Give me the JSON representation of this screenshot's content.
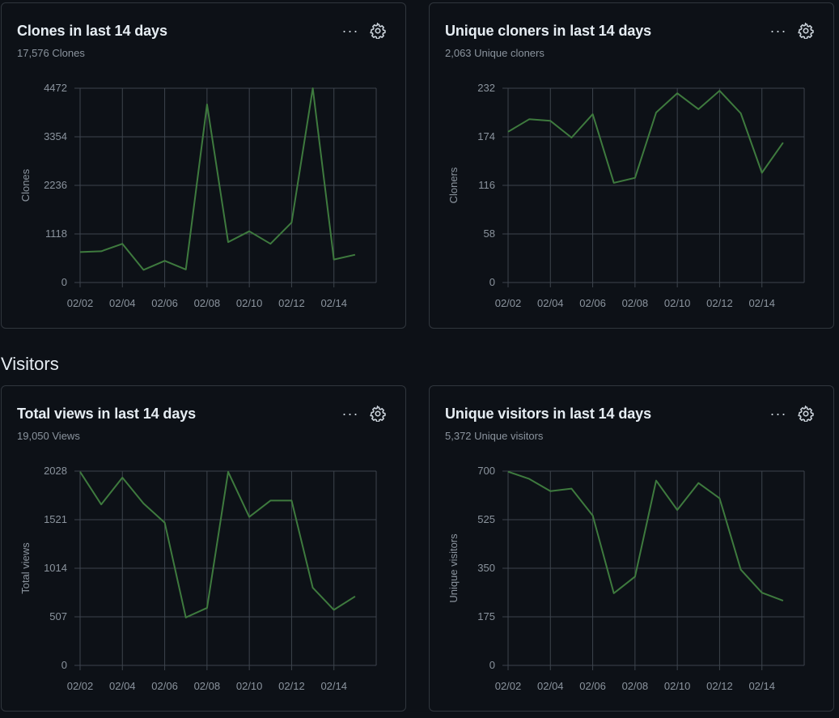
{
  "section_visitors": "Visitors",
  "colors": {
    "line": "#3e7a3e",
    "grid": "#3d444d",
    "axis_text": "#8b949e"
  },
  "icons": {
    "more": "kebab-horizontal-icon",
    "settings": "gear-icon"
  },
  "more_glyph": "···",
  "cards": [
    {
      "title": "Clones in last 14 days",
      "subtitle": "17,576 Clones"
    },
    {
      "title": "Unique cloners in last 14 days",
      "subtitle": "2,063 Unique cloners"
    },
    {
      "title": "Total views in last 14 days",
      "subtitle": "19,050 Views"
    },
    {
      "title": "Unique visitors in last 14 days",
      "subtitle": "5,372 Unique visitors"
    }
  ],
  "chart_data": [
    {
      "type": "line",
      "title": "Clones in last 14 days",
      "ylabel": "Clones",
      "ylim": [
        0,
        4472
      ],
      "yticks": [
        "0",
        "1118",
        "2236",
        "3354",
        "4472"
      ],
      "xticks": [
        "02/02",
        "02/04",
        "02/06",
        "02/08",
        "02/10",
        "02/12",
        "02/14"
      ],
      "x": [
        "02/02",
        "02/03",
        "02/04",
        "02/05",
        "02/06",
        "02/07",
        "02/08",
        "02/09",
        "02/10",
        "02/11",
        "02/12",
        "02/13",
        "02/14",
        "02/15"
      ],
      "values": [
        700,
        720,
        890,
        290,
        500,
        300,
        4100,
        930,
        1180,
        890,
        1380,
        4472,
        530,
        640
      ],
      "grid": true
    },
    {
      "type": "line",
      "title": "Unique cloners in last 14 days",
      "ylabel": "Cloners",
      "ylim": [
        0,
        232
      ],
      "yticks": [
        "0",
        "58",
        "116",
        "174",
        "232"
      ],
      "xticks": [
        "02/02",
        "02/04",
        "02/06",
        "02/08",
        "02/10",
        "02/12",
        "02/14"
      ],
      "x": [
        "02/02",
        "02/03",
        "02/04",
        "02/05",
        "02/06",
        "02/07",
        "02/08",
        "02/09",
        "02/10",
        "02/11",
        "02/12",
        "02/13",
        "02/14",
        "02/15"
      ],
      "values": [
        180,
        195,
        193,
        173,
        201,
        119,
        125,
        203,
        226,
        207,
        229,
        202,
        131,
        167
      ],
      "grid": true
    },
    {
      "type": "line",
      "title": "Total views in last 14 days",
      "ylabel": "Total views",
      "ylim": [
        0,
        2028
      ],
      "yticks": [
        "0",
        "507",
        "1014",
        "1521",
        "2028"
      ],
      "xticks": [
        "02/02",
        "02/04",
        "02/06",
        "02/08",
        "02/10",
        "02/12",
        "02/14"
      ],
      "x": [
        "02/02",
        "02/03",
        "02/04",
        "02/05",
        "02/06",
        "02/07",
        "02/08",
        "02/09",
        "02/10",
        "02/11",
        "02/12",
        "02/13",
        "02/14",
        "02/15"
      ],
      "values": [
        2020,
        1680,
        1960,
        1690,
        1490,
        500,
        600,
        2020,
        1550,
        1720,
        1720,
        810,
        580,
        720
      ],
      "grid": true
    },
    {
      "type": "line",
      "title": "Unique visitors in last 14 days",
      "ylabel": "Unique visitors",
      "ylim": [
        0,
        700
      ],
      "yticks": [
        "0",
        "175",
        "350",
        "525",
        "700"
      ],
      "xticks": [
        "02/02",
        "02/04",
        "02/06",
        "02/08",
        "02/10",
        "02/12",
        "02/14"
      ],
      "x": [
        "02/02",
        "02/03",
        "02/04",
        "02/05",
        "02/06",
        "02/07",
        "02/08",
        "02/09",
        "02/10",
        "02/11",
        "02/12",
        "02/13",
        "02/14",
        "02/15"
      ],
      "values": [
        698,
        672,
        628,
        637,
        540,
        260,
        320,
        666,
        560,
        657,
        602,
        345,
        262,
        233
      ],
      "grid": true
    }
  ]
}
